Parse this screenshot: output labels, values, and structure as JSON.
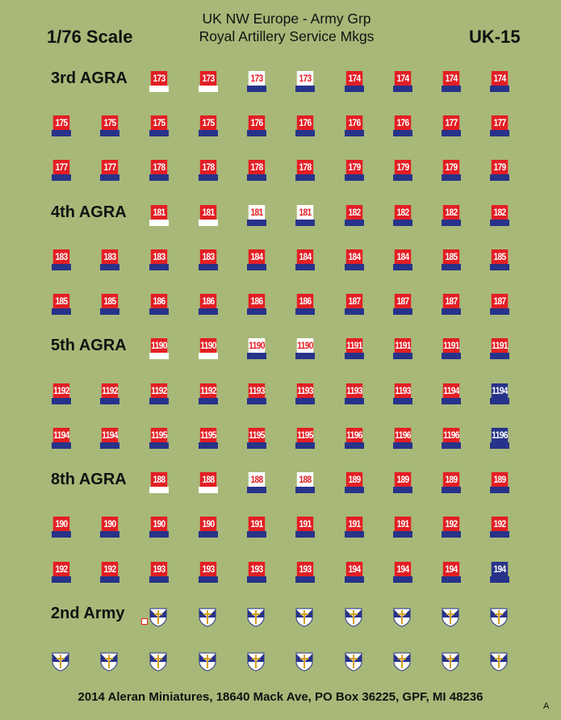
{
  "header": {
    "scale": "1/76 Scale",
    "title_line1": "UK NW Europe - Army Grp",
    "title_line2": "Royal Artillery Service Mkgs",
    "code": "UK-15"
  },
  "footer": "2014  Aleran Miniatures, 18640 Mack Ave, PO Box 36225, GPF, MI 48236",
  "corner_mark": "A",
  "colors": {
    "background": "#a8b878",
    "red": "#e31e24",
    "blue": "#27338a",
    "white": "#ffffff"
  },
  "rows": [
    {
      "label": "3rd AGRA",
      "decals": [
        {
          "n": "173",
          "s": "w"
        },
        {
          "n": "173",
          "s": "w"
        },
        {
          "n": "173",
          "s": "r"
        },
        {
          "n": "173",
          "s": "r"
        },
        {
          "n": "174",
          "s": "b"
        },
        {
          "n": "174",
          "s": "b"
        },
        {
          "n": "174",
          "s": "b"
        },
        {
          "n": "174",
          "s": "b"
        }
      ]
    },
    {
      "label": "",
      "decals": [
        {
          "n": "175",
          "s": "b"
        },
        {
          "n": "175",
          "s": "b"
        },
        {
          "n": "175",
          "s": "b"
        },
        {
          "n": "175",
          "s": "b"
        },
        {
          "n": "176",
          "s": "b"
        },
        {
          "n": "176",
          "s": "b"
        },
        {
          "n": "176",
          "s": "b"
        },
        {
          "n": "176",
          "s": "b"
        },
        {
          "n": "177",
          "s": "b"
        },
        {
          "n": "177",
          "s": "b"
        }
      ]
    },
    {
      "label": "",
      "decals": [
        {
          "n": "177",
          "s": "b"
        },
        {
          "n": "177",
          "s": "b"
        },
        {
          "n": "178",
          "s": "b"
        },
        {
          "n": "178",
          "s": "b"
        },
        {
          "n": "178",
          "s": "b"
        },
        {
          "n": "178",
          "s": "b"
        },
        {
          "n": "179",
          "s": "b"
        },
        {
          "n": "179",
          "s": "b"
        },
        {
          "n": "179",
          "s": "b"
        },
        {
          "n": "179",
          "s": "b"
        }
      ]
    },
    {
      "label": "4th AGRA",
      "decals": [
        {
          "n": "181",
          "s": "w"
        },
        {
          "n": "181",
          "s": "w"
        },
        {
          "n": "181",
          "s": "r"
        },
        {
          "n": "181",
          "s": "r"
        },
        {
          "n": "182",
          "s": "b"
        },
        {
          "n": "182",
          "s": "b"
        },
        {
          "n": "182",
          "s": "b"
        },
        {
          "n": "182",
          "s": "b"
        }
      ]
    },
    {
      "label": "",
      "decals": [
        {
          "n": "183",
          "s": "b"
        },
        {
          "n": "183",
          "s": "b"
        },
        {
          "n": "183",
          "s": "b"
        },
        {
          "n": "183",
          "s": "b"
        },
        {
          "n": "184",
          "s": "b"
        },
        {
          "n": "184",
          "s": "b"
        },
        {
          "n": "184",
          "s": "b"
        },
        {
          "n": "184",
          "s": "b"
        },
        {
          "n": "185",
          "s": "b"
        },
        {
          "n": "185",
          "s": "b"
        }
      ]
    },
    {
      "label": "",
      "decals": [
        {
          "n": "185",
          "s": "b"
        },
        {
          "n": "185",
          "s": "b"
        },
        {
          "n": "186",
          "s": "b"
        },
        {
          "n": "186",
          "s": "b"
        },
        {
          "n": "186",
          "s": "b"
        },
        {
          "n": "186",
          "s": "b"
        },
        {
          "n": "187",
          "s": "b"
        },
        {
          "n": "187",
          "s": "b"
        },
        {
          "n": "187",
          "s": "b"
        },
        {
          "n": "187",
          "s": "b"
        }
      ]
    },
    {
      "label": "5th AGRA",
      "decals": [
        {
          "n": "1190",
          "s": "w"
        },
        {
          "n": "1190",
          "s": "w"
        },
        {
          "n": "1190",
          "s": "r"
        },
        {
          "n": "1190",
          "s": "r"
        },
        {
          "n": "1191",
          "s": "b"
        },
        {
          "n": "1191",
          "s": "b"
        },
        {
          "n": "1191",
          "s": "b"
        },
        {
          "n": "1191",
          "s": "b"
        }
      ]
    },
    {
      "label": "",
      "decals": [
        {
          "n": "1192",
          "s": "b"
        },
        {
          "n": "1192",
          "s": "b"
        },
        {
          "n": "1192",
          "s": "b"
        },
        {
          "n": "1192",
          "s": "b"
        },
        {
          "n": "1193",
          "s": "b"
        },
        {
          "n": "1193",
          "s": "b"
        },
        {
          "n": "1193",
          "s": "b"
        },
        {
          "n": "1193",
          "s": "b"
        },
        {
          "n": "1194",
          "s": "b"
        },
        {
          "n": "1194",
          "s": "u"
        }
      ]
    },
    {
      "label": "",
      "decals": [
        {
          "n": "1194",
          "s": "b"
        },
        {
          "n": "1194",
          "s": "b"
        },
        {
          "n": "1195",
          "s": "b"
        },
        {
          "n": "1195",
          "s": "b"
        },
        {
          "n": "1195",
          "s": "b"
        },
        {
          "n": "1195",
          "s": "b"
        },
        {
          "n": "1196",
          "s": "b"
        },
        {
          "n": "1196",
          "s": "b"
        },
        {
          "n": "1196",
          "s": "b"
        },
        {
          "n": "1196",
          "s": "u"
        }
      ]
    },
    {
      "label": "8th AGRA",
      "decals": [
        {
          "n": "188",
          "s": "w"
        },
        {
          "n": "188",
          "s": "w"
        },
        {
          "n": "188",
          "s": "r"
        },
        {
          "n": "188",
          "s": "r"
        },
        {
          "n": "189",
          "s": "b"
        },
        {
          "n": "189",
          "s": "b"
        },
        {
          "n": "189",
          "s": "b"
        },
        {
          "n": "189",
          "s": "b"
        }
      ]
    },
    {
      "label": "",
      "decals": [
        {
          "n": "190",
          "s": "b"
        },
        {
          "n": "190",
          "s": "b"
        },
        {
          "n": "190",
          "s": "b"
        },
        {
          "n": "190",
          "s": "b"
        },
        {
          "n": "191",
          "s": "b"
        },
        {
          "n": "191",
          "s": "b"
        },
        {
          "n": "191",
          "s": "b"
        },
        {
          "n": "191",
          "s": "b"
        },
        {
          "n": "192",
          "s": "b"
        },
        {
          "n": "192",
          "s": "b"
        }
      ]
    },
    {
      "label": "",
      "decals": [
        {
          "n": "192",
          "s": "b"
        },
        {
          "n": "192",
          "s": "b"
        },
        {
          "n": "193",
          "s": "b"
        },
        {
          "n": "193",
          "s": "b"
        },
        {
          "n": "193",
          "s": "b"
        },
        {
          "n": "193",
          "s": "b"
        },
        {
          "n": "194",
          "s": "b"
        },
        {
          "n": "194",
          "s": "b"
        },
        {
          "n": "194",
          "s": "b"
        },
        {
          "n": "194",
          "s": "u"
        }
      ]
    },
    {
      "label": "2nd Army",
      "decals": [
        {
          "n": "",
          "s": "shield"
        },
        {
          "n": "",
          "s": "shield"
        },
        {
          "n": "",
          "s": "shield"
        },
        {
          "n": "",
          "s": "shield"
        },
        {
          "n": "",
          "s": "shield"
        },
        {
          "n": "",
          "s": "shield"
        },
        {
          "n": "",
          "s": "shield"
        },
        {
          "n": "",
          "s": "shield"
        }
      ]
    },
    {
      "label": "",
      "decals": [
        {
          "n": "",
          "s": "shield"
        },
        {
          "n": "",
          "s": "shield"
        },
        {
          "n": "",
          "s": "shield"
        },
        {
          "n": "",
          "s": "shield"
        },
        {
          "n": "",
          "s": "shield"
        },
        {
          "n": "",
          "s": "shield"
        },
        {
          "n": "",
          "s": "shield"
        },
        {
          "n": "",
          "s": "shield"
        },
        {
          "n": "",
          "s": "shield"
        },
        {
          "n": "",
          "s": "shield"
        }
      ]
    }
  ]
}
